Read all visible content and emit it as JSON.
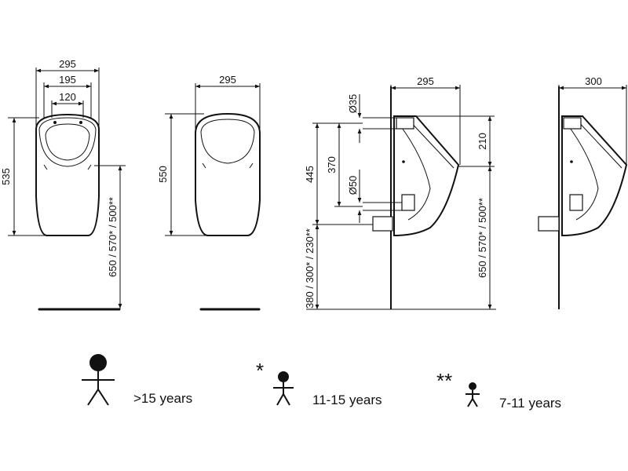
{
  "dimensions": {
    "front_open": {
      "outer_width": "295",
      "mid_width": "195",
      "inner_width": "120",
      "height": "535"
    },
    "front_closed": {
      "width": "295",
      "height": "550"
    },
    "side_left": {
      "width": "295",
      "dia_top": "Ø35",
      "dia_bottom": "Ø50",
      "h_445": "445",
      "h_370": "370",
      "h_210": "210",
      "mount_height": "650 / 570* / 500**",
      "floor_height": "380 / 300* / 230**"
    },
    "side_right": {
      "width": "300"
    }
  },
  "legend": [
    {
      "marker": "",
      "label": ">15 years"
    },
    {
      "marker": "*",
      "label": "11-15 years"
    },
    {
      "marker": "**",
      "label": "7-11 years"
    }
  ]
}
